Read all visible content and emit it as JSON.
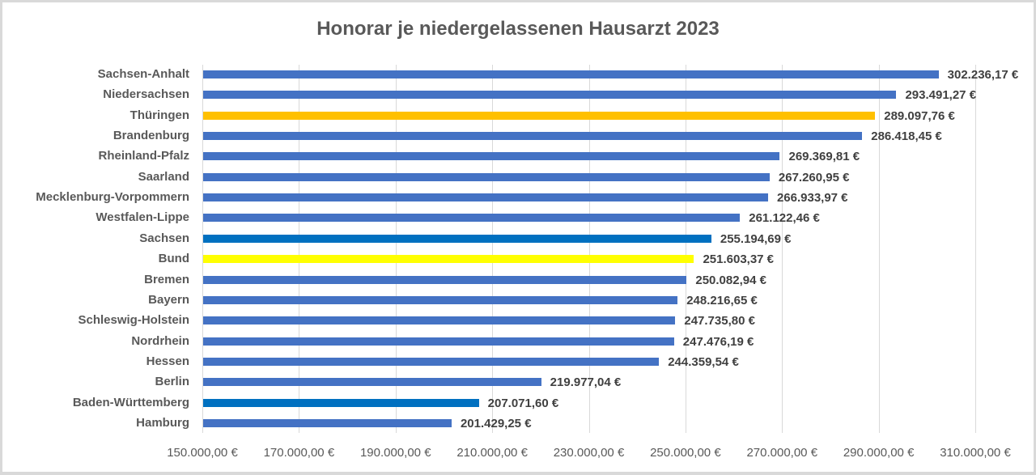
{
  "chart_data": {
    "type": "bar",
    "orientation": "horizontal",
    "title": "Honorar je niedergelassenen Hausarzt 2023",
    "xlabel": "",
    "ylabel": "",
    "xlim": [
      150000,
      310000
    ],
    "grid": true,
    "legend": null,
    "x_ticks": [
      "150.000,00 €",
      "170.000,00 €",
      "190.000,00 €",
      "210.000,00 €",
      "230.000,00 €",
      "250.000,00 €",
      "270.000,00 €",
      "290.000,00 €",
      "310.000,00 €"
    ],
    "x_tick_values": [
      150000,
      170000,
      190000,
      210000,
      230000,
      250000,
      270000,
      290000,
      310000
    ],
    "categories": [
      "Sachsen-Anhalt",
      "Niedersachsen",
      "Thüringen",
      "Brandenburg",
      "Rheinland-Pfalz",
      "Saarland",
      "Mecklenburg-Vorpommern",
      "Westfalen-Lippe",
      "Sachsen",
      "Bund",
      "Bremen",
      "Bayern",
      "Schleswig-Holstein",
      "Nordrhein",
      "Hessen",
      "Berlin",
      "Baden-Württemberg",
      "Hamburg"
    ],
    "values": [
      302236.17,
      293491.27,
      289097.76,
      286418.45,
      269369.81,
      267260.95,
      266933.97,
      261122.46,
      255194.69,
      251603.37,
      250082.94,
      248216.65,
      247735.8,
      247476.19,
      244359.54,
      219977.04,
      207071.6,
      201429.25
    ],
    "labels": [
      "302.236,17 €",
      "293.491,27 €",
      "289.097,76 €",
      "286.418,45 €",
      "269.369,81 €",
      "267.260,95 €",
      "266.933,97 €",
      "261.122,46 €",
      "255.194,69 €",
      "251.603,37 €",
      "250.082,94 €",
      "248.216,65 €",
      "247.735,80 €",
      "247.476,19 €",
      "244.359,54 €",
      "219.977,04 €",
      "207.071,60 €",
      "201.429,25 €"
    ],
    "colors": [
      "#4472c4",
      "#4472c4",
      "#ffc000",
      "#4472c4",
      "#4472c4",
      "#4472c4",
      "#4472c4",
      "#4472c4",
      "#0070c0",
      "#ffff00",
      "#4472c4",
      "#4472c4",
      "#4472c4",
      "#4472c4",
      "#4472c4",
      "#4472c4",
      "#0070c0",
      "#4472c4"
    ]
  }
}
